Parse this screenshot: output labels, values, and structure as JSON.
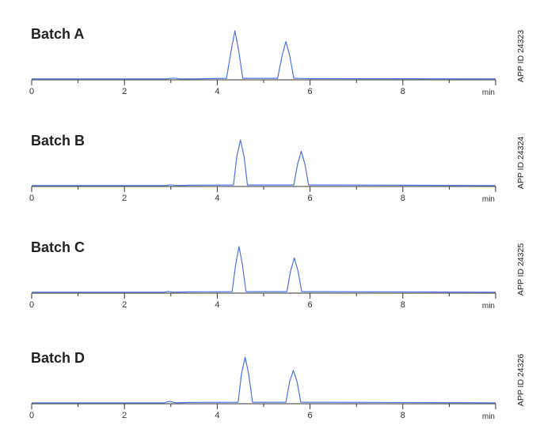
{
  "chart_data": [
    {
      "type": "line",
      "title": "Batch A",
      "side_label": "APP ID 24323",
      "x_unit": "min",
      "xlim": [
        0,
        10
      ],
      "ylim": [
        0,
        1
      ],
      "xticks": [
        0,
        2,
        4,
        6,
        8
      ],
      "grid": false,
      "color": "#4a72e8",
      "series": [
        {
          "x": [
            0,
            2.9,
            3.05,
            3.2,
            3.5,
            4.2,
            4.3,
            4.38,
            4.46,
            4.55,
            5.3,
            5.4,
            5.48,
            5.56,
            5.65,
            6.0,
            10
          ],
          "y": [
            0.02,
            0.02,
            0.035,
            0.02,
            0.02,
            0.03,
            0.6,
            1.0,
            0.6,
            0.03,
            0.03,
            0.5,
            0.78,
            0.5,
            0.03,
            0.025,
            0.02
          ]
        }
      ]
    },
    {
      "type": "line",
      "title": "Batch B",
      "side_label": "APP ID 24324",
      "x_unit": "min",
      "xlim": [
        0,
        10
      ],
      "ylim": [
        0,
        1
      ],
      "xticks": [
        0,
        2,
        4,
        6,
        8
      ],
      "grid": false,
      "color": "#4a72e8",
      "series": [
        {
          "x": [
            0,
            2.9,
            3.0,
            3.1,
            3.4,
            4.35,
            4.42,
            4.5,
            4.58,
            4.65,
            5.65,
            5.73,
            5.81,
            5.89,
            5.97,
            6.4,
            10
          ],
          "y": [
            0.02,
            0.02,
            0.035,
            0.02,
            0.025,
            0.03,
            0.6,
            0.95,
            0.6,
            0.03,
            0.03,
            0.45,
            0.72,
            0.45,
            0.03,
            0.03,
            0.02
          ]
        }
      ]
    },
    {
      "type": "line",
      "title": "Batch C",
      "side_label": "APP ID 24325",
      "x_unit": "min",
      "xlim": [
        0,
        10
      ],
      "ylim": [
        0,
        1
      ],
      "xticks": [
        0,
        2,
        4,
        6,
        8
      ],
      "grid": false,
      "color": "#4a72e8",
      "series": [
        {
          "x": [
            0,
            2.85,
            2.95,
            3.05,
            3.4,
            4.32,
            4.4,
            4.47,
            4.54,
            4.62,
            5.5,
            5.58,
            5.66,
            5.74,
            5.82,
            6.3,
            10
          ],
          "y": [
            0.02,
            0.02,
            0.035,
            0.02,
            0.025,
            0.03,
            0.6,
            0.95,
            0.6,
            0.03,
            0.03,
            0.45,
            0.72,
            0.45,
            0.03,
            0.03,
            0.02
          ]
        }
      ]
    },
    {
      "type": "line",
      "title": "Batch D",
      "side_label": "APP ID 24326",
      "x_unit": "min",
      "xlim": [
        0,
        10
      ],
      "ylim": [
        0,
        1
      ],
      "xticks": [
        0,
        2,
        4,
        6,
        8
      ],
      "grid": false,
      "color": "#4a72e8",
      "series": [
        {
          "x": [
            0,
            2.85,
            2.97,
            3.1,
            3.4,
            4.45,
            4.52,
            4.6,
            4.68,
            4.76,
            5.48,
            5.56,
            5.64,
            5.72,
            5.8,
            6.3,
            10
          ],
          "y": [
            0.02,
            0.02,
            0.05,
            0.02,
            0.025,
            0.03,
            0.6,
            0.95,
            0.6,
            0.03,
            0.03,
            0.45,
            0.68,
            0.45,
            0.03,
            0.03,
            0.02
          ]
        }
      ]
    }
  ]
}
